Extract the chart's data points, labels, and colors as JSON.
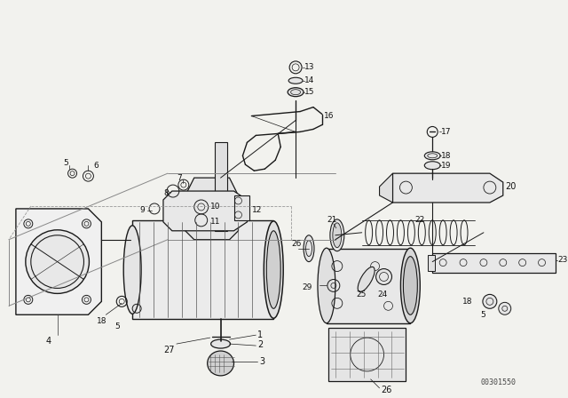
{
  "bg_color": "#f2f2ee",
  "col": "#1a1a1a",
  "figsize": [
    6.4,
    4.48
  ],
  "dpi": 100,
  "part_code": "00301550"
}
